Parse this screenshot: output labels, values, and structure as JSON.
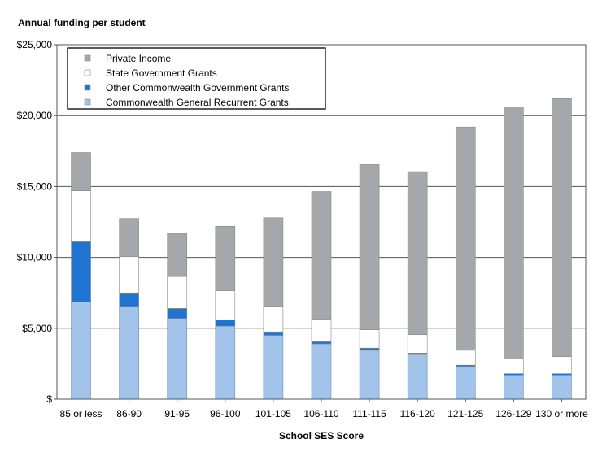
{
  "chart_data": {
    "type": "bar",
    "stacked": true,
    "title": "Annual funding per student",
    "xlabel": "School SES Score",
    "ylabel": "",
    "ylim": [
      0,
      25000
    ],
    "y_ticks": [
      0,
      5000,
      10000,
      15000,
      20000,
      25000
    ],
    "y_tick_labels": [
      "$",
      "$5,000",
      "$10,000",
      "$15,000",
      "$20,000",
      "$25,000"
    ],
    "grid": true,
    "legend_position": "top-left",
    "categories": [
      "85 or less",
      "86-90",
      "91-95",
      "96-100",
      "101-105",
      "106-110",
      "111-115",
      "116-120",
      "121-125",
      "126-129",
      "130 or more"
    ],
    "series": [
      {
        "name": "Commonwealth General Recurrent Grants",
        "color": "#a3c4ea",
        "values": [
          6850,
          6550,
          5700,
          5150,
          4500,
          3900,
          3450,
          3150,
          2300,
          1700,
          1700
        ]
      },
      {
        "name": "Other Commonwealth Government Grants",
        "color": "#1f74d0",
        "values": [
          4250,
          950,
          700,
          450,
          250,
          150,
          150,
          100,
          100,
          100,
          100
        ]
      },
      {
        "name": "State Government Grants",
        "color": "#ffffff",
        "values": [
          3600,
          2550,
          2250,
          2050,
          1800,
          1600,
          1300,
          1300,
          1050,
          1050,
          1200
        ]
      },
      {
        "name": "Private Income",
        "color": "#a6a7aa",
        "values": [
          2700,
          2700,
          3050,
          4550,
          6250,
          9000,
          11650,
          11500,
          15750,
          17750,
          18200
        ]
      }
    ],
    "legend_order": [
      "Private Income",
      "State Government Grants",
      "Other Commonwealth Government Grants",
      "Commonwealth General Recurrent Grants"
    ]
  }
}
